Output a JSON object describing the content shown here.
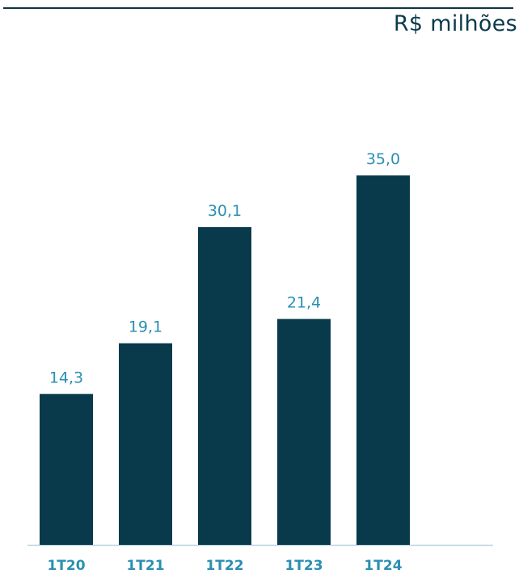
{
  "header": {
    "unit": "R$ milhões"
  },
  "colors": {
    "bar": "#083a4b",
    "label": "#2a8fb3",
    "baseline": "#b7d3e1"
  },
  "chart_data": {
    "type": "bar",
    "categories": [
      "1T20",
      "1T21",
      "1T22",
      "1T23",
      "1T24"
    ],
    "values": [
      14.3,
      19.1,
      30.1,
      21.4,
      35.0
    ],
    "value_labels": [
      "14,3",
      "19,1",
      "30,1",
      "21,4",
      "35,0"
    ],
    "title": "",
    "xlabel": "",
    "ylabel": "R$ milhões",
    "ylim": [
      0,
      35
    ],
    "grid": false,
    "legend": "none"
  }
}
